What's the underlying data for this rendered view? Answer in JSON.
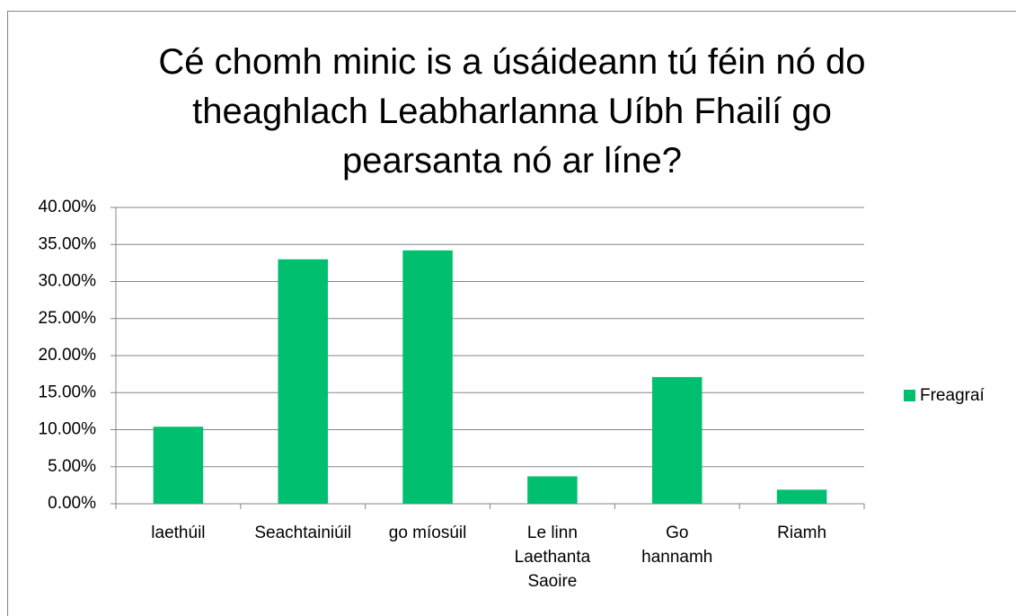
{
  "chart_data": {
    "type": "bar",
    "title": "Cé chomh minic is a úsáideann tú féin nó do theaghlach Leabharlanna Uíbh Fhailí go pearsanta nó ar líne?",
    "categories": [
      "laethúil",
      "Seachtainiúil",
      "go míosúil",
      "Le linn Laethanta Saoire",
      "Go hannamh",
      "Riamh"
    ],
    "series": [
      {
        "name": "Freagraí",
        "color": "#00c06f",
        "values": [
          10.4,
          33.0,
          34.2,
          3.7,
          17.1,
          1.9
        ]
      }
    ],
    "ylim": [
      0,
      40
    ],
    "yticks": [
      {
        "value": 0,
        "label": "0.00%"
      },
      {
        "value": 5,
        "label": "5.00%"
      },
      {
        "value": 10,
        "label": "10.00%"
      },
      {
        "value": 15,
        "label": "15.00%"
      },
      {
        "value": 20,
        "label": "20.00%"
      },
      {
        "value": 25,
        "label": "25.00%"
      },
      {
        "value": 30,
        "label": "30.00%"
      },
      {
        "value": 35,
        "label": "35.00%"
      },
      {
        "value": 40,
        "label": "40.00%"
      }
    ],
    "grid": true,
    "legend": "right"
  }
}
